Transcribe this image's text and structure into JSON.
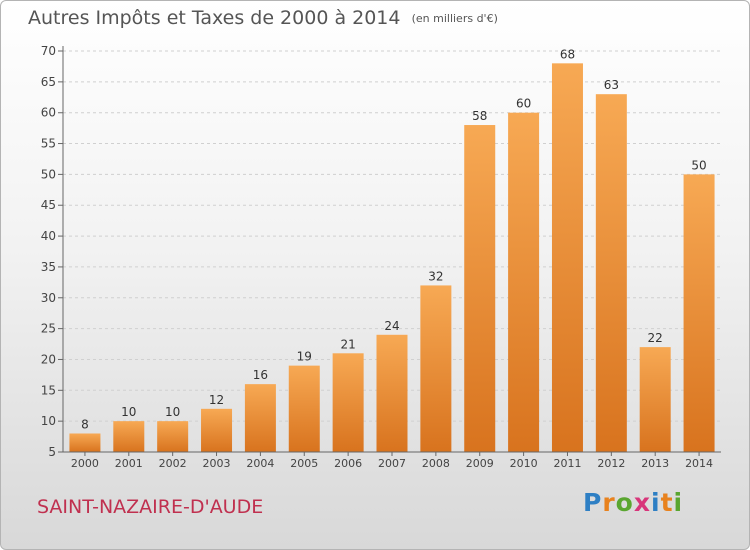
{
  "page": {
    "place": "SAINT-NAZAIRE-D'AUDE",
    "logo": {
      "letters": [
        "P",
        "r",
        "o",
        "x",
        "i",
        "t",
        "i"
      ],
      "colors": [
        "#2e7fc4",
        "#e8821e",
        "#5aa630",
        "#d8357a",
        "#2e7fc4",
        "#e8821e",
        "#5aa630"
      ]
    }
  },
  "colors": {
    "bar_light": "#f7a954",
    "bar_dark": "#d8731e",
    "grid": "#d0d0d0",
    "axis_text": "#444444"
  },
  "chart_data": {
    "type": "bar",
    "title": "Autres Impôts et Taxes de 2000 à 2014",
    "subtitle": "(en milliers d'€)",
    "xlabel": "",
    "ylabel": "",
    "categories": [
      "2000",
      "2001",
      "2002",
      "2003",
      "2004",
      "2005",
      "2006",
      "2007",
      "2008",
      "2009",
      "2010",
      "2011",
      "2012",
      "2013",
      "2014"
    ],
    "values": [
      8,
      10,
      10,
      12,
      16,
      19,
      21,
      24,
      32,
      58,
      60,
      68,
      63,
      22,
      50
    ],
    "ylim": [
      5,
      70
    ],
    "yticks": [
      5,
      10,
      15,
      20,
      25,
      30,
      35,
      40,
      45,
      50,
      55,
      60,
      65,
      70
    ],
    "grid": true,
    "data_labels": true
  }
}
